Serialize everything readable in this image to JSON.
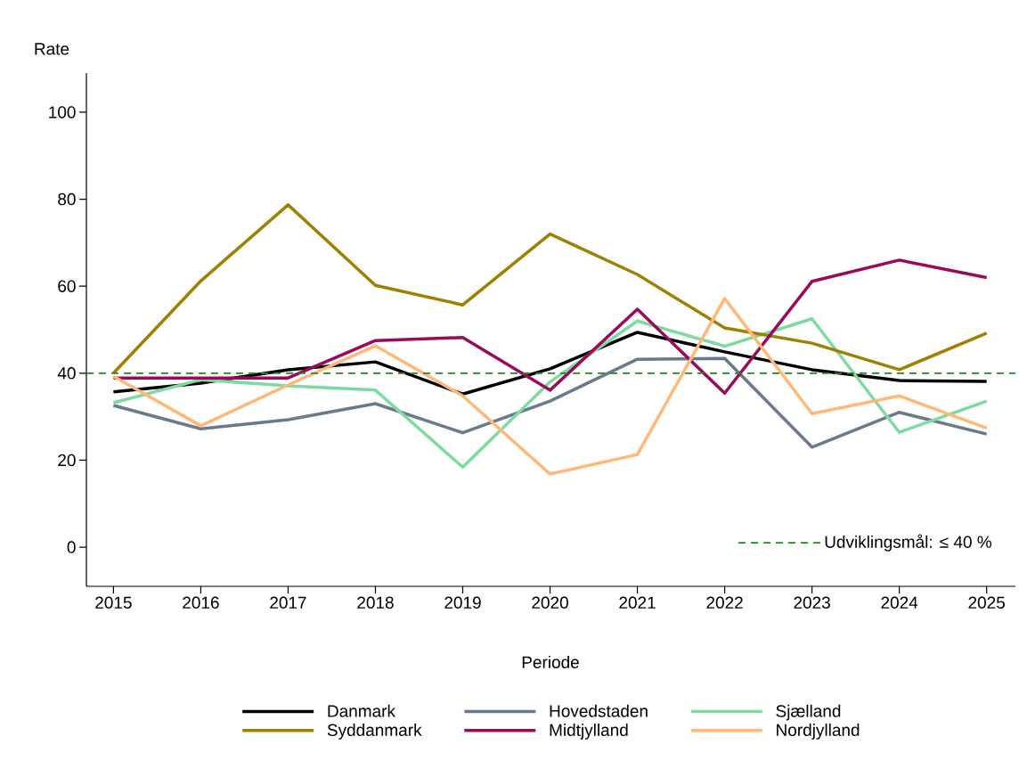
{
  "chart_data": {
    "type": "line",
    "ylabel": "Rate",
    "xlabel": "Periode",
    "x": [
      2015,
      2016,
      2017,
      2018,
      2019,
      2020,
      2021,
      2022,
      2023,
      2024,
      2025
    ],
    "series": [
      {
        "name": "Danmark",
        "color": "#000000",
        "values": [
          35.7,
          37.7,
          40.8,
          42.6,
          35.2,
          41.0,
          49.4,
          44.9,
          40.8,
          38.3,
          38.1
        ]
      },
      {
        "name": "Hovedstaden",
        "color": "#687a8c",
        "values": [
          32.6,
          27.2,
          29.3,
          33.0,
          26.3,
          33.6,
          43.2,
          43.4,
          23.0,
          31.0,
          26.0
        ]
      },
      {
        "name": "Sjælland",
        "color": "#7ddba0",
        "values": [
          33.2,
          38.5,
          37.1,
          36.1,
          18.4,
          38.0,
          52.0,
          46.2,
          52.5,
          26.4,
          33.6
        ]
      },
      {
        "name": "Syddanmark",
        "color": "#a08000",
        "values": [
          40.0,
          61.2,
          78.7,
          60.2,
          55.7,
          72.0,
          62.7,
          50.4,
          46.9,
          40.8,
          49.2
        ]
      },
      {
        "name": "Midtjylland",
        "color": "#9b0a5a",
        "values": [
          38.9,
          38.9,
          38.9,
          47.5,
          48.2,
          36.1,
          54.7,
          35.4,
          61.1,
          66.0,
          62.0
        ]
      },
      {
        "name": "Nordjylland",
        "color": "#ffb877",
        "values": [
          39.3,
          27.9,
          37.3,
          46.3,
          34.8,
          16.8,
          21.3,
          57.2,
          30.7,
          34.8,
          27.4
        ]
      }
    ],
    "ref_lines": [
      {
        "axis": "y",
        "value": 40,
        "label": "Udviklingsmål: ≤ 40 %",
        "color": "#1e8c1e",
        "line_style": "dashed"
      }
    ],
    "xlim": [
      2014.69,
      2025.33
    ],
    "ylim": [
      -9,
      109
    ],
    "xticks": [
      2015,
      2016,
      2017,
      2018,
      2019,
      2020,
      2021,
      2022,
      2023,
      2024,
      2025
    ],
    "yticks": [
      0,
      20,
      40,
      60,
      80,
      100
    ],
    "grid": false,
    "legend": "bottom",
    "marker": "none",
    "line_style": "solid"
  }
}
